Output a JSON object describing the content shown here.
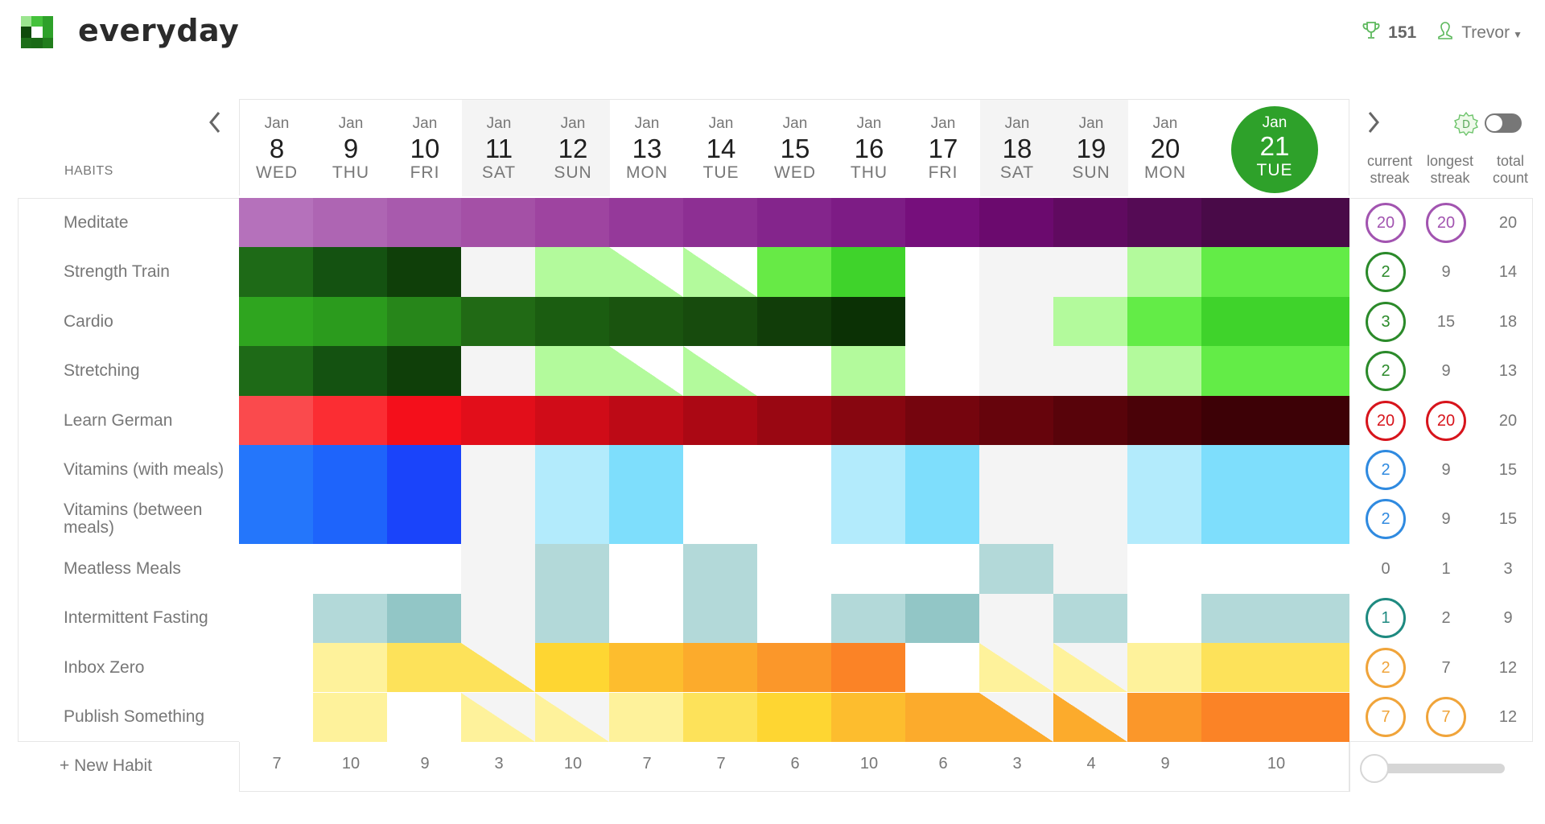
{
  "app": {
    "name": "everyday",
    "score": "151",
    "user": "Trevor"
  },
  "logo_colors": [
    "#9be58f",
    "#44c23b",
    "#2ea12a",
    "#0f4a0b",
    "#ffffff",
    "#2ea12a",
    "#1d6e19",
    "#1a6a16",
    "#217d1c"
  ],
  "header": {
    "habits_label": "HABITS",
    "stats": {
      "current": [
        "current",
        "streak"
      ],
      "longest": [
        "longest",
        "streak"
      ],
      "total": [
        "total",
        "count"
      ]
    },
    "today_index": 13
  },
  "dates": [
    {
      "m": "Jan",
      "d": "8",
      "w": "WED",
      "weekend": false
    },
    {
      "m": "Jan",
      "d": "9",
      "w": "THU",
      "weekend": false
    },
    {
      "m": "Jan",
      "d": "10",
      "w": "FRI",
      "weekend": false
    },
    {
      "m": "Jan",
      "d": "11",
      "w": "SAT",
      "weekend": true
    },
    {
      "m": "Jan",
      "d": "12",
      "w": "SUN",
      "weekend": true
    },
    {
      "m": "Jan",
      "d": "13",
      "w": "MON",
      "weekend": false
    },
    {
      "m": "Jan",
      "d": "14",
      "w": "TUE",
      "weekend": false
    },
    {
      "m": "Jan",
      "d": "15",
      "w": "WED",
      "weekend": false
    },
    {
      "m": "Jan",
      "d": "16",
      "w": "THU",
      "weekend": false
    },
    {
      "m": "Jan",
      "d": "17",
      "w": "FRI",
      "weekend": false
    },
    {
      "m": "Jan",
      "d": "18",
      "w": "SAT",
      "weekend": true
    },
    {
      "m": "Jan",
      "d": "19",
      "w": "SUN",
      "weekend": true
    },
    {
      "m": "Jan",
      "d": "20",
      "w": "MON",
      "weekend": false
    },
    {
      "m": "Jan",
      "d": "21",
      "w": "TUE",
      "weekend": false
    }
  ],
  "habits": [
    {
      "name": "Meditate",
      "ring": "#a254b0",
      "current": "20",
      "longest": "20",
      "total": "20",
      "current_ring": true,
      "longest_ring": true,
      "cells": [
        "#b571bb",
        "#ae65b3",
        "#a85aad",
        "#a450a6",
        "#9e44a0",
        "#95399a",
        "#8d2f93",
        "#84258c",
        "#7d1c85",
        "#760f7c",
        "#6b0a6e",
        "#600a60",
        "#550b55",
        "#490a48"
      ]
    },
    {
      "name": "Strength Train",
      "ring": "#2b8a2a",
      "current": "2",
      "longest": "9",
      "total": "14",
      "current_ring": true,
      "longest_ring": false,
      "cells": [
        "#1e6a17",
        "#145211",
        "#0f3f09",
        "",
        "#b3fa9c",
        "tri:#b3fa9c",
        "tri:#b3fa9c",
        "#67ea46",
        "#3fd32b",
        "",
        "",
        "",
        "#b3fa9c",
        "#63ec47"
      ]
    },
    {
      "name": "Cardio",
      "ring": "#2b8a2a",
      "current": "3",
      "longest": "15",
      "total": "18",
      "current_ring": true,
      "longest_ring": false,
      "cells": [
        "#2fa51f",
        "#2b9b1d",
        "#27861a",
        "#216a15",
        "#1b5d11",
        "#1a540f",
        "#174b0d",
        "#113d09",
        "#0b3105",
        "",
        "",
        "#b3fa9c",
        "#63ec47",
        "#3fd32b"
      ]
    },
    {
      "name": "Stretching",
      "ring": "#2b8a2a",
      "current": "2",
      "longest": "9",
      "total": "13",
      "current_ring": true,
      "longest_ring": false,
      "cells": [
        "#1e6a17",
        "#145211",
        "#0f3f09",
        "",
        "#b3fa9c",
        "tri:#b3fa9c",
        "tri:#b3fa9c",
        "",
        "#b3fa9c",
        "",
        "",
        "",
        "#b3fa9c",
        "#63ec47"
      ]
    },
    {
      "name": "Learn German",
      "ring": "#d7141c",
      "current": "20",
      "longest": "20",
      "total": "20",
      "current_ring": true,
      "longest_ring": true,
      "cells": [
        "#fa4a4d",
        "#fb2d33",
        "#f40f1b",
        "#e20e1a",
        "#d00c18",
        "#bd0a16",
        "#ab0814",
        "#990712",
        "#870610",
        "#75050e",
        "#66040c",
        "#58030a",
        "#4a0208",
        "#3d0106"
      ]
    },
    {
      "name": "Vitamins (with meals)",
      "ring": "#2f8ae0",
      "current": "2",
      "longest": "9",
      "total": "15",
      "current_ring": true,
      "longest_ring": false,
      "cells": [
        "#2476fb",
        "#1e64fb",
        "#1a44fa",
        "",
        "#b3ebfc",
        "#7edefc",
        "",
        "",
        "#b3ebfc",
        "#7edefc",
        "",
        "",
        "#b3ebfc",
        "#7edefc"
      ]
    },
    {
      "name": "Vitamins (between meals)",
      "ring": "#2f8ae0",
      "current": "2",
      "longest": "9",
      "total": "15",
      "current_ring": true,
      "longest_ring": false,
      "cells": [
        "#2476fb",
        "#1e64fb",
        "#1a44fa",
        "",
        "#b3ebfc",
        "#7edefc",
        "",
        "",
        "#b3ebfc",
        "#7edefc",
        "",
        "",
        "#b3ebfc",
        "#7edefc"
      ]
    },
    {
      "name": "Meatless Meals",
      "ring": "",
      "current": "0",
      "longest": "1",
      "total": "3",
      "current_ring": false,
      "longest_ring": false,
      "cells": [
        "",
        "",
        "",
        "",
        "#b3d9d9",
        "",
        "#b3d9d9",
        "",
        "",
        "",
        "#b3d9d9",
        "",
        "",
        ""
      ]
    },
    {
      "name": "Intermittent Fasting",
      "ring": "#1e8a80",
      "current": "1",
      "longest": "2",
      "total": "9",
      "current_ring": true,
      "longest_ring": false,
      "cells": [
        "",
        "#b3d9d9",
        "#92c6c6",
        "",
        "#b3d9d9",
        "",
        "#b3d9d9",
        "",
        "#b3d9d9",
        "#92c6c6",
        "",
        "#b3d9d9",
        "",
        "#b3d9d9"
      ]
    },
    {
      "name": "Inbox Zero",
      "ring": "#f0a43a",
      "current": "2",
      "longest": "7",
      "total": "12",
      "current_ring": true,
      "longest_ring": false,
      "cells": [
        "",
        "#fef29b",
        "#fde25a",
        "tri:#fde25a",
        "#fed632",
        "#fdbd2e",
        "#fcab2c",
        "#fb972a",
        "#fb8326",
        "",
        "tri:#fef29b",
        "tri:#fef29b",
        "#fef29b",
        "#fde25a"
      ]
    },
    {
      "name": "Publish Something",
      "ring": "#f0a43a",
      "current": "7",
      "longest": "7",
      "total": "12",
      "current_ring": true,
      "longest_ring": true,
      "cells": [
        "",
        "#fef29b",
        "",
        "tri:#fef29b",
        "tri:#fef29b",
        "#fef29b",
        "#fde25a",
        "#fed632",
        "#fdbd2e",
        "#fcab2c",
        "tri:#fcab2c",
        "tri:#fcab2c",
        "#fb972a",
        "#fb8326"
      ]
    }
  ],
  "daily_totals": [
    "7",
    "10",
    "9",
    "3",
    "10",
    "7",
    "7",
    "6",
    "10",
    "6",
    "3",
    "4",
    "9",
    "10"
  ],
  "footer": {
    "new_habit": "+ New Habit"
  },
  "weekend_bg": "#f4f4f4"
}
